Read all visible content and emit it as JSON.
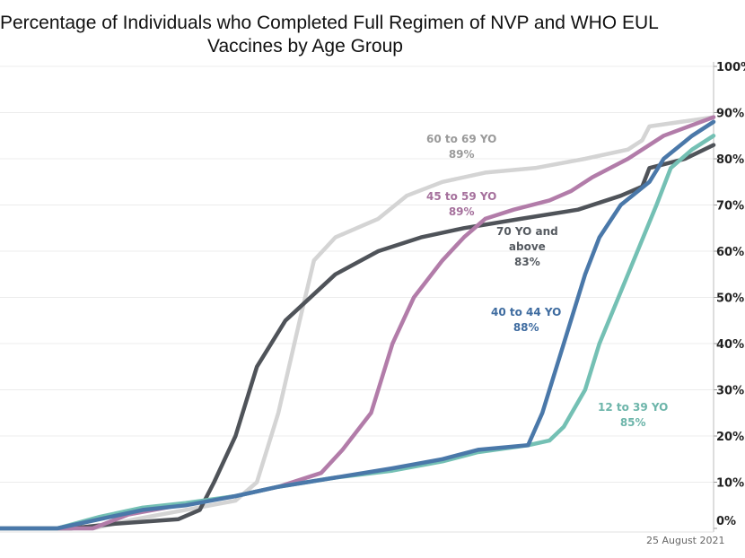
{
  "chart_data": {
    "type": "line",
    "title": "Percentage of Individuals who Completed Full Regimen of NVP and WHO EUL Vaccines by Age Group",
    "title_lines": [
      "Percentage of Individuals who Completed Full Regimen of NVP and WHO EUL",
      "Vaccines by Age Group"
    ],
    "xlabel": "",
    "ylabel": "",
    "ylim": [
      0,
      100
    ],
    "y_axis_position": "right",
    "y_ticks": [
      "0%",
      "10%",
      "20%",
      "30%",
      "40%",
      "50%",
      "60%",
      "70%",
      "80%",
      "90%",
      "100%"
    ],
    "grid": true,
    "date_note": "25 August 2021",
    "series": [
      {
        "name": "70 YO and above",
        "label_lines": [
          "70 YO and",
          "above"
        ],
        "final": "83%",
        "color": "#4f5359",
        "label_color": "#555a60",
        "x": [
          0,
          10,
          16,
          25,
          28,
          30,
          33,
          36,
          40,
          47,
          53,
          59,
          65,
          73,
          81,
          87,
          90,
          91,
          96,
          100
        ],
        "y": [
          0,
          0,
          1,
          2,
          4,
          10,
          20,
          35,
          45,
          55,
          60,
          63,
          65,
          67,
          69,
          72,
          74,
          78,
          80,
          83
        ]
      },
      {
        "name": "60 to 69 YO",
        "label_lines": [
          "60 to 69 YO"
        ],
        "final": "89%",
        "color": "#d4d4d4",
        "label_color": "#9a9a9a",
        "x": [
          0,
          13,
          19,
          26,
          33,
          36,
          39,
          42,
          44,
          47,
          53,
          57,
          62,
          68,
          75,
          82,
          88,
          90,
          91,
          100
        ],
        "y": [
          0,
          0,
          2,
          4,
          6,
          10,
          25,
          45,
          58,
          63,
          67,
          72,
          75,
          77,
          78,
          80,
          82,
          84,
          87,
          89
        ]
      },
      {
        "name": "45 to 59 YO",
        "label_lines": [
          "45 to 59 YO"
        ],
        "final": "89%",
        "color": "#b27ca9",
        "label_color": "#a5709c",
        "x": [
          0,
          13,
          18,
          25,
          33,
          39,
          45,
          48,
          52,
          53,
          55,
          58,
          62,
          65,
          68,
          72,
          77,
          80,
          83,
          88,
          93,
          100
        ],
        "y": [
          0,
          0,
          3,
          5,
          7,
          9,
          12,
          17,
          25,
          30,
          40,
          50,
          58,
          63,
          67,
          69,
          71,
          73,
          76,
          80,
          85,
          89
        ]
      },
      {
        "name": "40 to 44 YO",
        "label_lines": [
          "40 to 44 YO"
        ],
        "final": "88%",
        "color": "#4a78a9",
        "label_color": "#3f6ca0",
        "x": [
          0,
          8,
          14,
          20,
          26,
          33,
          39,
          47,
          55,
          62,
          67,
          74,
          76,
          79,
          82,
          84,
          87,
          91,
          93,
          97,
          100
        ],
        "y": [
          0,
          0,
          2,
          4,
          5,
          7,
          9,
          11,
          13,
          15,
          17,
          18,
          25,
          40,
          55,
          63,
          70,
          75,
          80,
          85,
          88
        ]
      },
      {
        "name": "12 to 39 YO",
        "label_lines": [
          "12 to 39 YO"
        ],
        "final": "85%",
        "color": "#74c0b4",
        "label_color": "#6db5aa",
        "x": [
          0,
          8,
          14,
          20,
          26,
          33,
          39,
          47,
          55,
          62,
          67,
          74,
          77,
          79,
          82,
          84,
          88,
          92,
          94,
          97,
          100
        ],
        "y": [
          0,
          0,
          2.5,
          4.5,
          5.5,
          7,
          9,
          11,
          12.5,
          14.5,
          16.5,
          18,
          19,
          22,
          30,
          40,
          55,
          70,
          78,
          82,
          85
        ]
      }
    ]
  }
}
